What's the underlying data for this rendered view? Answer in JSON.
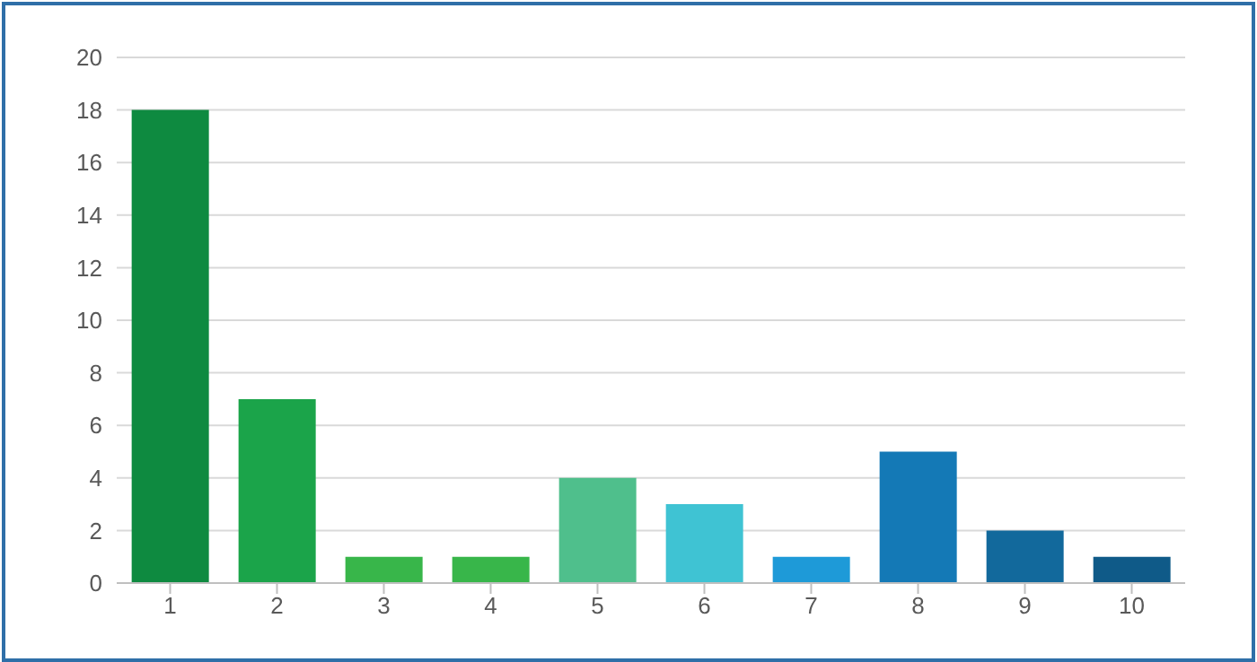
{
  "chart_data": {
    "type": "bar",
    "categories": [
      "1",
      "2",
      "3",
      "4",
      "5",
      "6",
      "7",
      "8",
      "9",
      "10"
    ],
    "values": [
      18,
      7,
      1,
      1,
      4,
      3,
      1,
      5,
      2,
      1
    ],
    "colors": [
      "#0e8a40",
      "#1ba44a",
      "#38b64a",
      "#38b64a",
      "#4fbf8c",
      "#3fc3d3",
      "#1e9ad8",
      "#1479b6",
      "#12699c",
      "#0f5a88"
    ],
    "ylim": [
      0,
      20
    ],
    "yticks": [
      0,
      2,
      4,
      6,
      8,
      10,
      12,
      14,
      16,
      18,
      20
    ],
    "grid": "y"
  }
}
